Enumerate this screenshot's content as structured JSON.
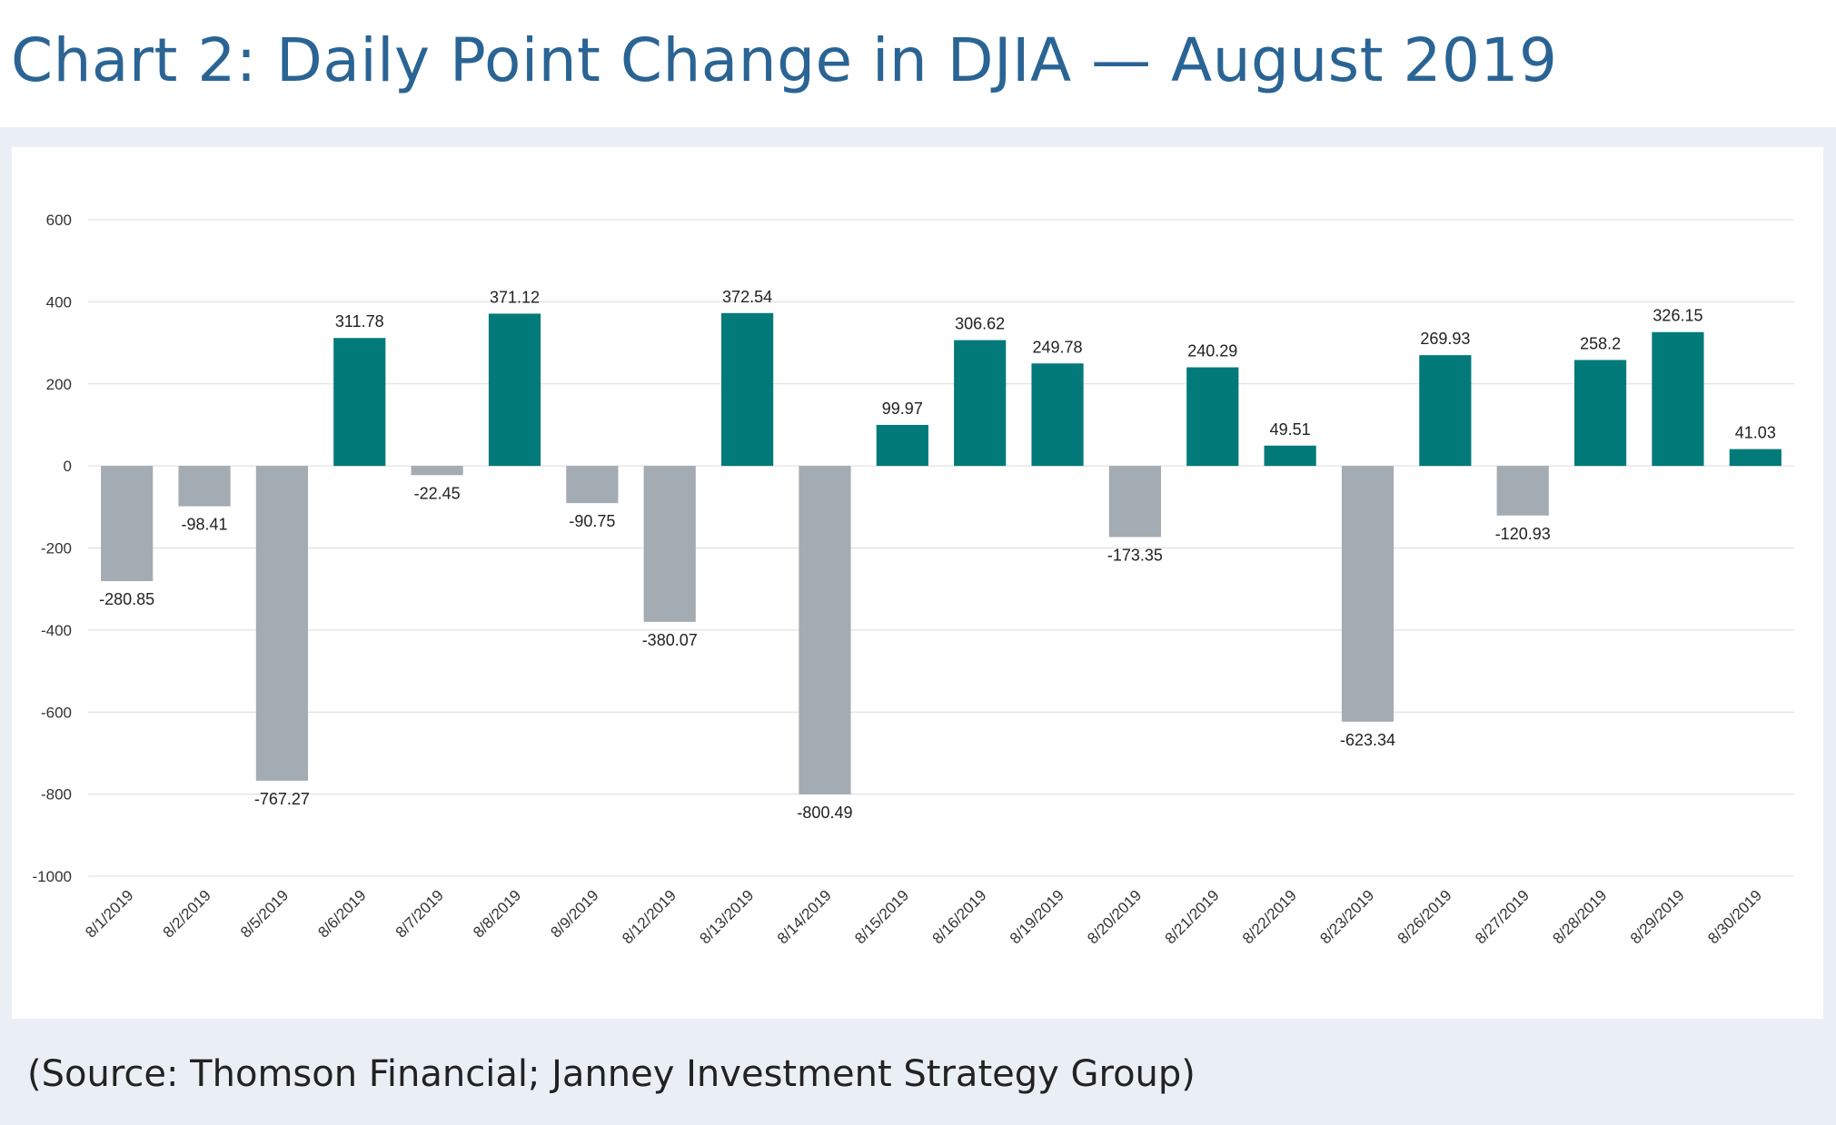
{
  "title": "Chart 2:  Daily Point Change in DJIA — August 2019",
  "source": "(Source: Thomson Financial; Janney Investment Strategy Group)",
  "colors": {
    "positive": "#037a7a",
    "negative": "#a3abb3",
    "title": "#2a6494",
    "panel": "#eaeff5",
    "grid": "#dcdcdc"
  },
  "chart_data": {
    "type": "bar",
    "title": "Daily Point Change in DJIA — August 2019",
    "xlabel": "",
    "ylabel": "",
    "ylim": [
      -1000,
      600
    ],
    "yticks": [
      600,
      400,
      200,
      0,
      -200,
      -400,
      -600,
      -800,
      -1000
    ],
    "grid": true,
    "categories": [
      "8/1/2019",
      "8/2/2019",
      "8/5/2019",
      "8/6/2019",
      "8/7/2019",
      "8/8/2019",
      "8/9/2019",
      "8/12/2019",
      "8/13/2019",
      "8/14/2019",
      "8/15/2019",
      "8/16/2019",
      "8/19/2019",
      "8/20/2019",
      "8/21/2019",
      "8/22/2019",
      "8/23/2019",
      "8/26/2019",
      "8/27/2019",
      "8/28/2019",
      "8/29/2019",
      "8/30/2019"
    ],
    "values": [
      -280.85,
      -98.41,
      -767.27,
      311.78,
      -22.45,
      371.12,
      -90.75,
      -380.07,
      372.54,
      -800.49,
      99.97,
      306.62,
      249.78,
      -173.35,
      240.29,
      49.51,
      -623.34,
      269.93,
      -120.93,
      258.2,
      326.15,
      41.03
    ],
    "labels": [
      "-280.85",
      "-98.41",
      "-767.27",
      "311.78",
      "-22.45",
      "371.12",
      "-90.75",
      "-380.07",
      "372.54",
      "-800.49",
      "99.97",
      "306.62",
      "249.78",
      "-173.35",
      "240.29",
      "49.51",
      "-623.34",
      "269.93",
      "-120.93",
      "258.2",
      "326.15",
      "41.03"
    ]
  }
}
